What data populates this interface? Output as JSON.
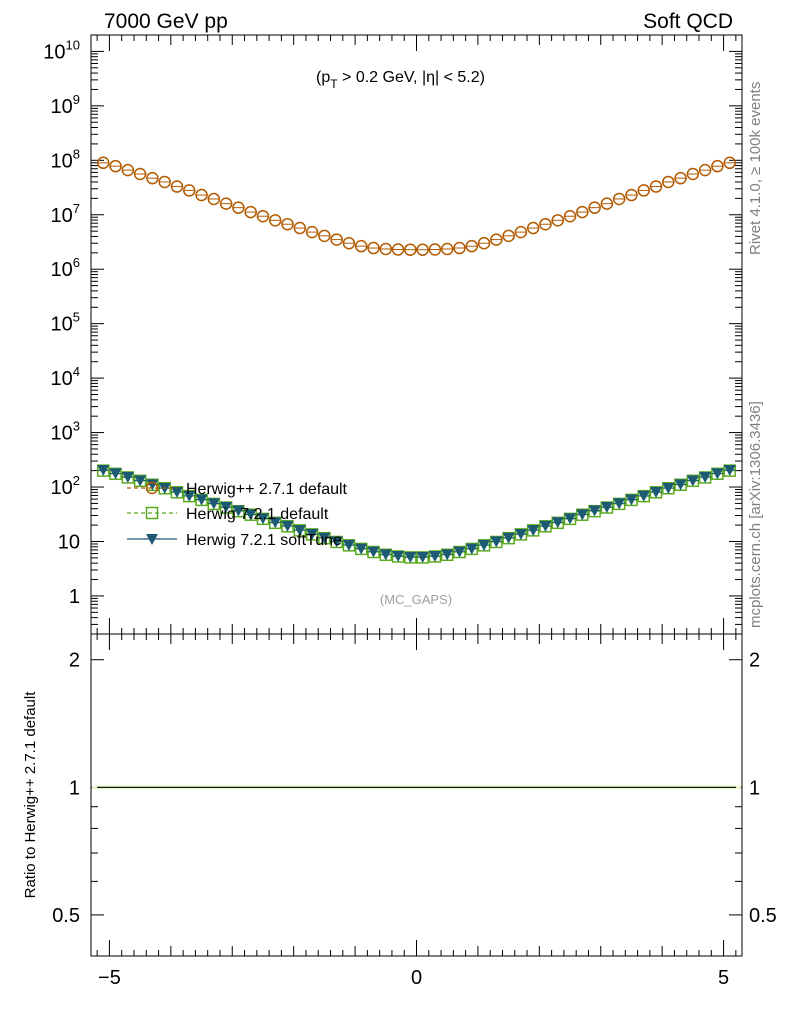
{
  "header": {
    "left": "7000 GeV pp",
    "right": "Soft QCD"
  },
  "side_labels": {
    "rivet": "Rivet 4.1.0, ≥ 100k events",
    "mcplots": "mcplots.cern.ch [arXiv:1306.3436]"
  },
  "analysis_tag": "(MC_GAPS)",
  "cut_label": {
    "p": "(p",
    "sub": "T",
    "rest": " > 0.2 GeV, |η| < 5.2)"
  },
  "legend": [
    {
      "label": "Herwig++ 2.7.1 default",
      "color": "#b35a00",
      "marker": "circle"
    },
    {
      "label": "Herwig 7.2.1 default",
      "color": "#5cab1e",
      "marker": "square"
    },
    {
      "label": "Herwig 7.2.1 softTune",
      "color": "#1b5a72",
      "marker": "triangle-down"
    }
  ],
  "chart_data": [
    {
      "type": "scatter",
      "scale": "log",
      "xlim": [
        -5.3,
        5.3
      ],
      "ylim": [
        0.2,
        20000000000
      ],
      "yticks": [
        "1",
        "10",
        "10^2",
        "10^3",
        "10^4",
        "10^5",
        "10^6",
        "10^7",
        "10^8",
        "10^9",
        "10^10"
      ],
      "x": [
        -5.1,
        -4.9,
        -4.7,
        -4.5,
        -4.3,
        -4.1,
        -3.9,
        -3.7,
        -3.5,
        -3.3,
        -3.1,
        -2.9,
        -2.7,
        -2.5,
        -2.3,
        -2.1,
        -1.9,
        -1.7,
        -1.5,
        -1.3,
        -1.1,
        -0.9,
        -0.7,
        -0.5,
        -0.3,
        -0.1,
        0.1,
        0.3,
        0.5,
        0.7,
        0.9,
        1.1,
        1.3,
        1.5,
        1.7,
        1.9,
        2.1,
        2.3,
        2.5,
        2.7,
        2.9,
        3.1,
        3.3,
        3.5,
        3.7,
        3.9,
        4.1,
        4.3,
        4.5,
        4.7,
        4.9,
        5.1
      ],
      "series": [
        {
          "name": "Herwig++ 2.7.1 default",
          "values": [
            90000000,
            78000000,
            66000000,
            56000000,
            47000000,
            40000000,
            33000000,
            28000000,
            23000000,
            19500000,
            16000000,
            13500000,
            11200000,
            9400000,
            7900000,
            6700000,
            5700000,
            4800000,
            4100000,
            3500000,
            3000000,
            2650000,
            2450000,
            2350000,
            2300000,
            2280000,
            2280000,
            2300000,
            2350000,
            2450000,
            2650000,
            3000000,
            3500000,
            4100000,
            4800000,
            5700000,
            6700000,
            7900000,
            9400000,
            11200000,
            13500000,
            16000000,
            19500000,
            23000000,
            28000000,
            33000000,
            40000000,
            47000000,
            56000000,
            66000000,
            78000000,
            90000000
          ]
        },
        {
          "name": "Herwig 7.2.1 default",
          "values": [
            200,
            175,
            150,
            130,
            110,
            95,
            80,
            68,
            58,
            49,
            42,
            36,
            31,
            26,
            22,
            19,
            16,
            13.5,
            11.5,
            9.8,
            8.5,
            7.3,
            6.4,
            5.7,
            5.3,
            5.1,
            5.1,
            5.3,
            5.7,
            6.4,
            7.3,
            8.5,
            9.8,
            11.5,
            13.5,
            16,
            19,
            22,
            26,
            31,
            36,
            42,
            49,
            58,
            68,
            80,
            95,
            110,
            130,
            150,
            175,
            200
          ]
        },
        {
          "name": "Herwig 7.2.1 softTune",
          "values": [
            205,
            178,
            153,
            132,
            112,
            96,
            81,
            69,
            59,
            50,
            43,
            37,
            31.5,
            26.5,
            22.5,
            19.3,
            16.2,
            13.7,
            11.7,
            10,
            8.6,
            7.4,
            6.5,
            5.8,
            5.4,
            5.2,
            5.2,
            5.4,
            5.8,
            6.5,
            7.4,
            8.6,
            10,
            11.7,
            13.7,
            16.2,
            19.3,
            22.5,
            26.5,
            31.5,
            37,
            43,
            50,
            59,
            69,
            81,
            96,
            112,
            132,
            153,
            178,
            205
          ]
        }
      ]
    },
    {
      "type": "line",
      "ylabel": "Ratio to Herwig++ 2.7.1 default",
      "xlim": [
        -5.3,
        5.3
      ],
      "ylim": [
        0.4,
        2.3
      ],
      "scale": "log",
      "yticks": [
        "0.5",
        "1",
        "2"
      ],
      "xticks": [
        "−5",
        "0",
        "5"
      ],
      "series": [
        {
          "name": "Herwig 7.2.1 default",
          "values": [
            1,
            1
          ]
        },
        {
          "name": "Herwig++ 2.7.1 default",
          "values": [
            1,
            1
          ]
        }
      ]
    }
  ]
}
